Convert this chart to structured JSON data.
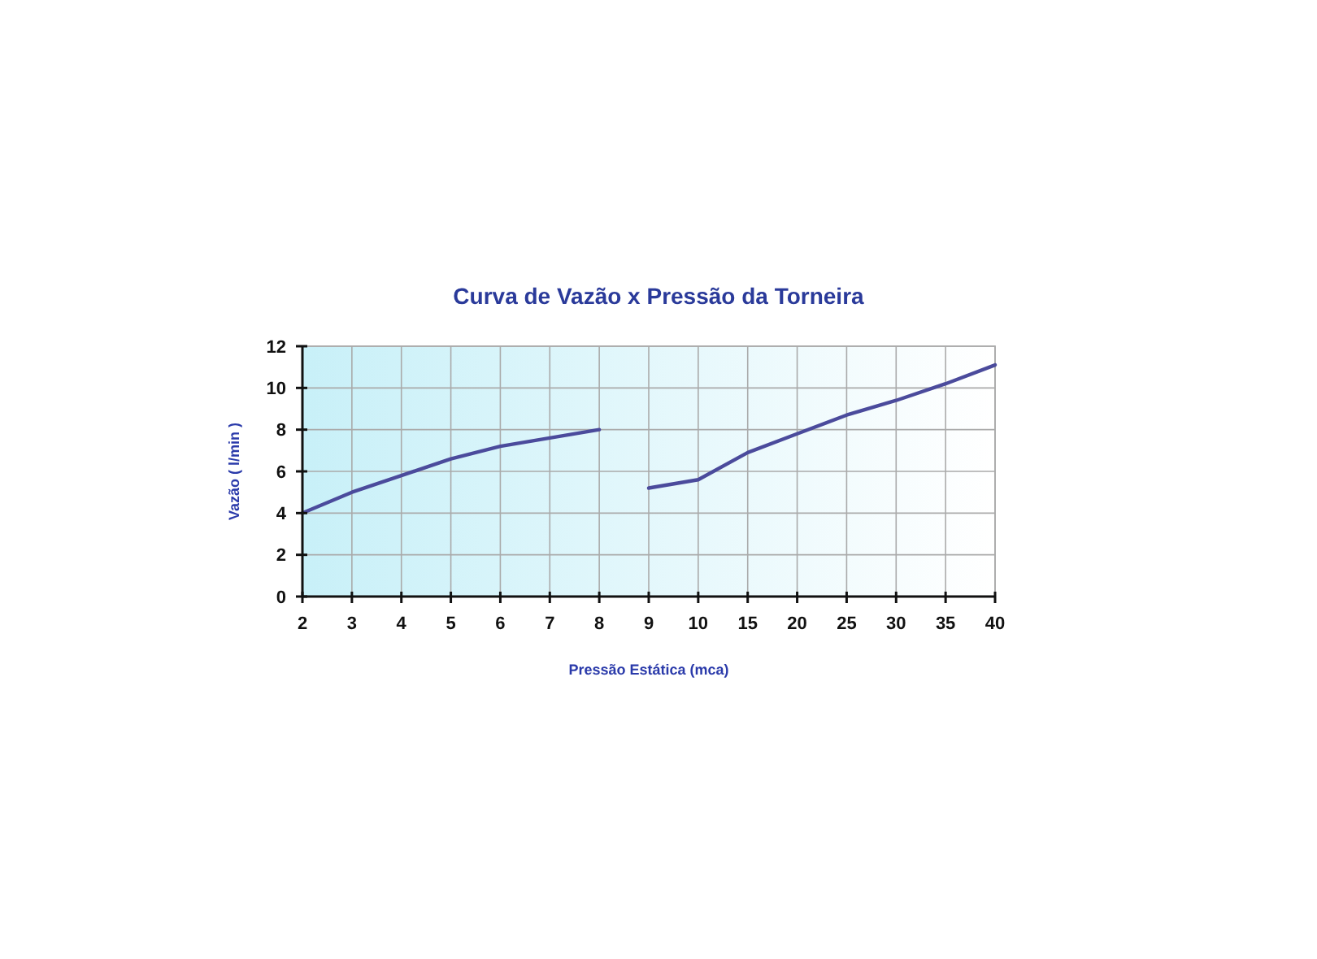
{
  "chart_data": {
    "type": "line",
    "title": "Curva de Vazão x Pressão da Torneira",
    "xlabel": "Pressão Estática (mca)",
    "ylabel": "Vazão ( l/min )",
    "categories": [
      "2",
      "3",
      "4",
      "5",
      "6",
      "7",
      "8",
      "9",
      "10",
      "15",
      "20",
      "25",
      "30",
      "35",
      "40"
    ],
    "series": [
      {
        "color": "#4b4b9c",
        "values": [
          4,
          5,
          5.8,
          6.6,
          7.2,
          7.6,
          8,
          null,
          null,
          null,
          null,
          null,
          null,
          null,
          null
        ]
      },
      {
        "color": "#4b4b9c",
        "values": [
          null,
          null,
          null,
          null,
          null,
          null,
          null,
          5.2,
          5.6,
          6.9,
          7.8,
          8.7,
          9.4,
          10.2,
          11.1
        ]
      }
    ],
    "ylim": [
      0,
      12
    ],
    "yticks": [
      0,
      2,
      4,
      6,
      8,
      10,
      12
    ],
    "grid": true,
    "marker": "none",
    "line_style": "solid"
  }
}
